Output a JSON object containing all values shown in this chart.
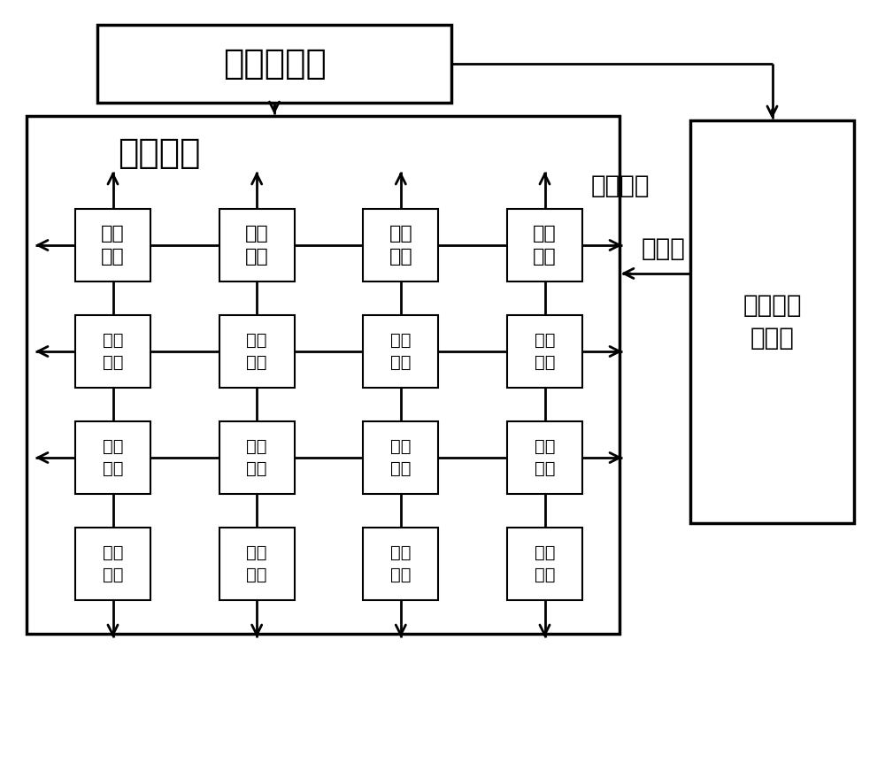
{
  "bg_color": "#ffffff",
  "title_controller": "阵列控制器",
  "title_array": "运算阵列",
  "title_network": "互联网络",
  "title_config_mem": "配置信息\n存储器",
  "title_config_word": "配置字",
  "unit_label": "运算\n单元",
  "grid_rows": 4,
  "grid_cols": 4,
  "lw_thick": 2.5,
  "lw_medium": 2.0,
  "lw_thin": 1.5,
  "arrow_mutation": 20,
  "font_size_title": 28,
  "font_size_label": 20,
  "font_size_unit": 16,
  "font_size_small_unit": 14
}
